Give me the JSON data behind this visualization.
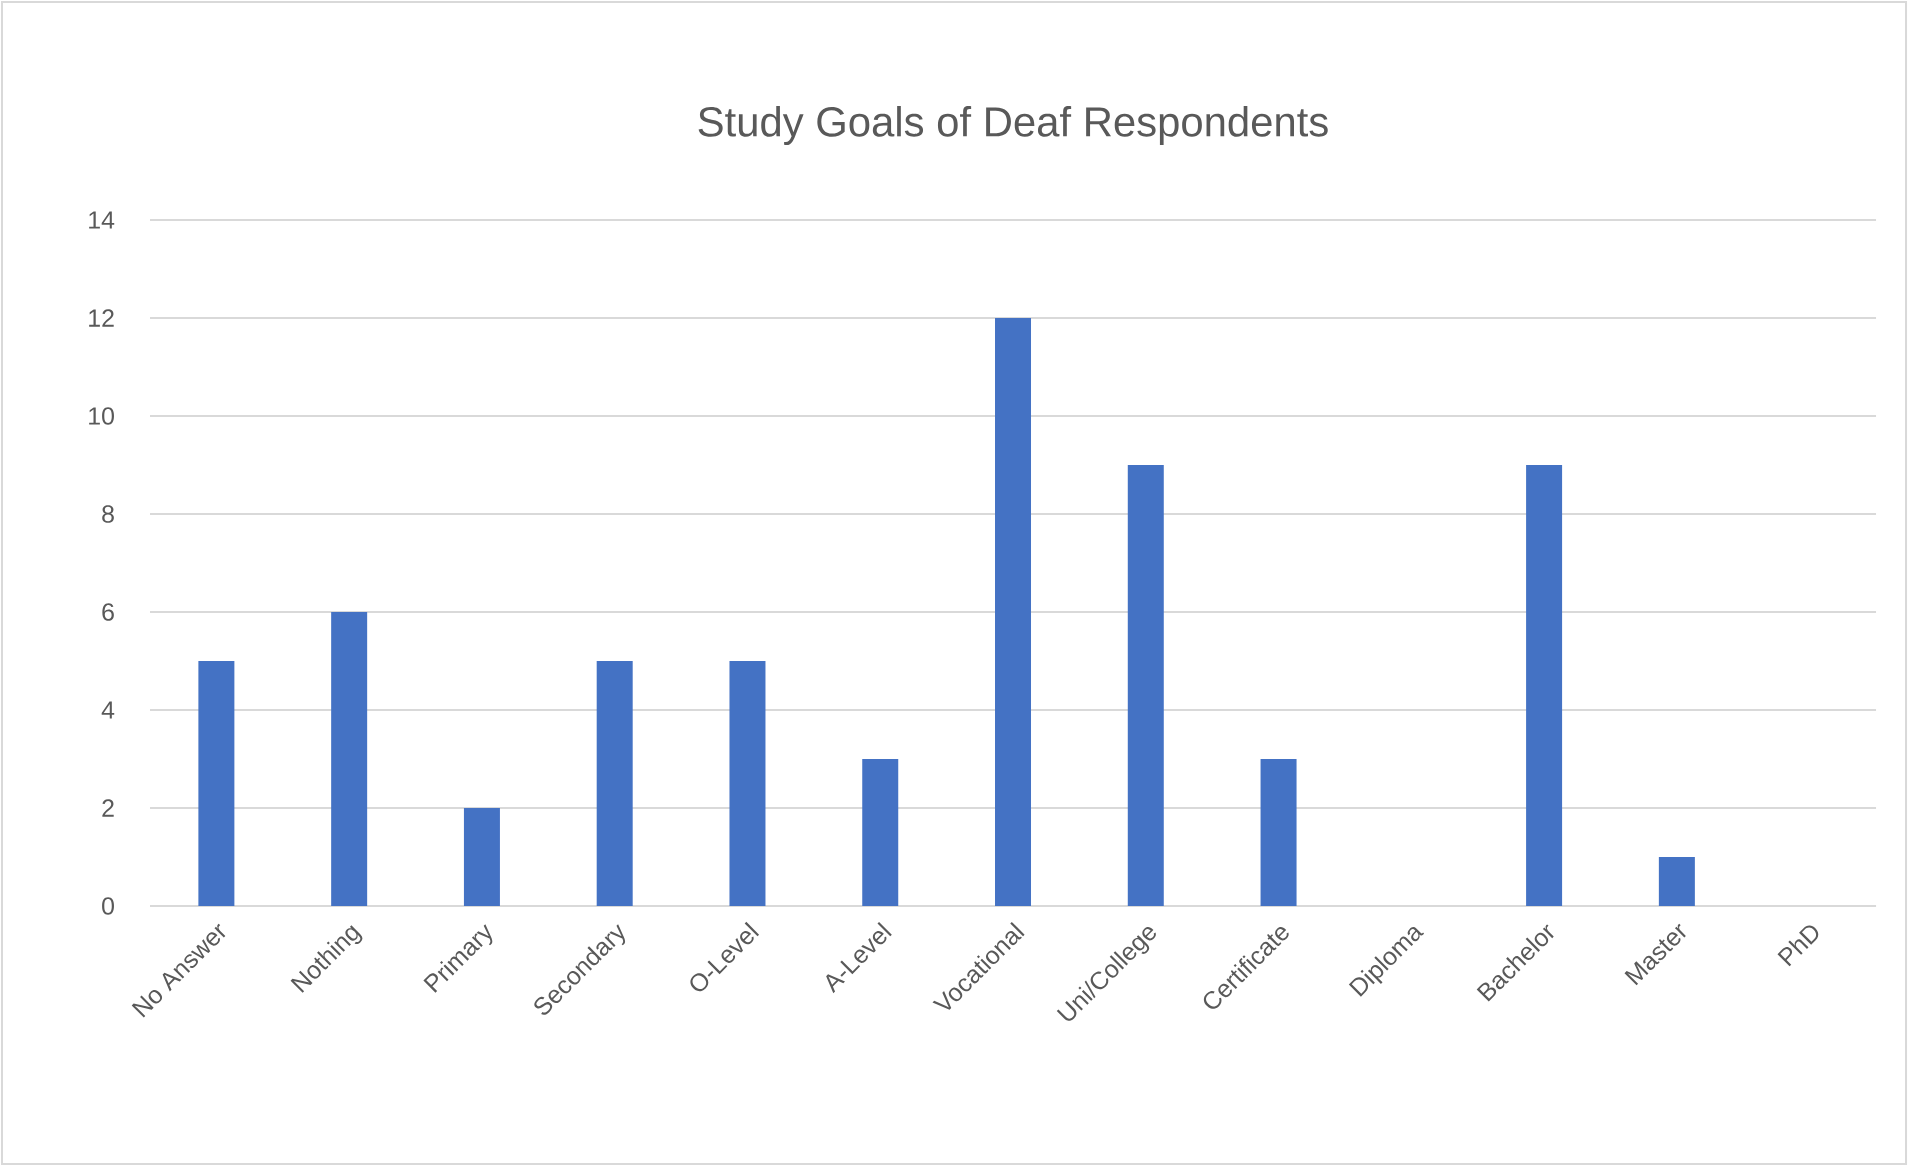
{
  "chart_data": {
    "type": "bar",
    "title": "Study Goals of Deaf Respondents",
    "categories": [
      "No Answer",
      "Nothing",
      "Primary",
      "Secondary",
      "O-Level",
      "A-Level",
      "Vocational",
      "Uni/College",
      "Certificate",
      "Diploma",
      "Bachelor",
      "Master",
      "PhD"
    ],
    "values": [
      5,
      6,
      2,
      5,
      5,
      3,
      12,
      9,
      3,
      0,
      9,
      1,
      0
    ],
    "color": "#4472c4",
    "ylim": [
      0,
      14
    ],
    "yticks": [
      0,
      2,
      4,
      6,
      8,
      10,
      12,
      14
    ],
    "grid": true
  }
}
